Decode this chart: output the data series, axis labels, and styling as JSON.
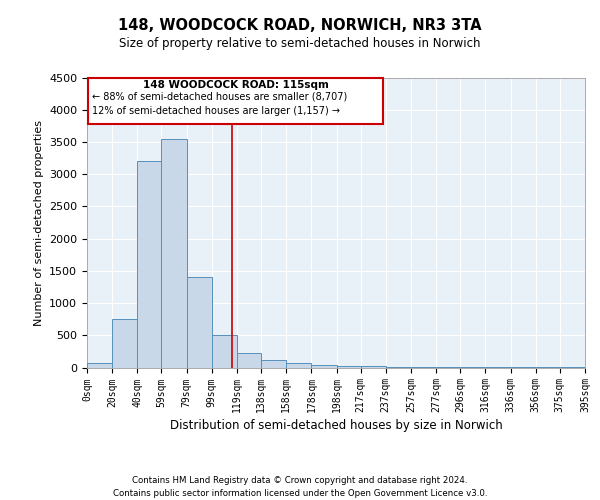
{
  "title1": "148, WOODCOCK ROAD, NORWICH, NR3 3TA",
  "title2": "Size of property relative to semi-detached houses in Norwich",
  "xlabel": "Distribution of semi-detached houses by size in Norwich",
  "ylabel": "Number of semi-detached properties",
  "property_size": 115,
  "property_label": "148 WOODCOCK ROAD: 115sqm",
  "pct_smaller": 88,
  "count_smaller": "8,707",
  "pct_larger": 12,
  "count_larger": "1,157",
  "bin_edges": [
    0,
    20,
    40,
    59,
    79,
    99,
    119,
    138,
    158,
    178,
    198,
    217,
    237,
    257,
    277,
    296,
    316,
    336,
    356,
    375,
    395
  ],
  "bar_heights": [
    75,
    750,
    3200,
    3550,
    1400,
    500,
    230,
    110,
    75,
    35,
    25,
    20,
    15,
    10,
    8,
    5,
    4,
    3,
    2,
    2
  ],
  "bar_color": "#c8d8e8",
  "bar_edge_color": "#5590bb",
  "grid_color": "#c8d8e8",
  "bg_color": "#e8f0f8",
  "ref_line_color": "#cc0000",
  "box_edge_color": "#cc0000",
  "ylim": [
    0,
    4500
  ],
  "yticks": [
    0,
    500,
    1000,
    1500,
    2000,
    2500,
    3000,
    3500,
    4000,
    4500
  ],
  "footer_line1": "Contains HM Land Registry data © Crown copyright and database right 2024.",
  "footer_line2": "Contains public sector information licensed under the Open Government Licence v3.0.",
  "tick_labels": [
    "0sqm",
    "20sqm",
    "40sqm",
    "59sqm",
    "79sqm",
    "99sqm",
    "119sqm",
    "138sqm",
    "158sqm",
    "178sqm",
    "198sqm",
    "217sqm",
    "237sqm",
    "257sqm",
    "277sqm",
    "296sqm",
    "316sqm",
    "336sqm",
    "356sqm",
    "375sqm",
    "395sqm"
  ]
}
